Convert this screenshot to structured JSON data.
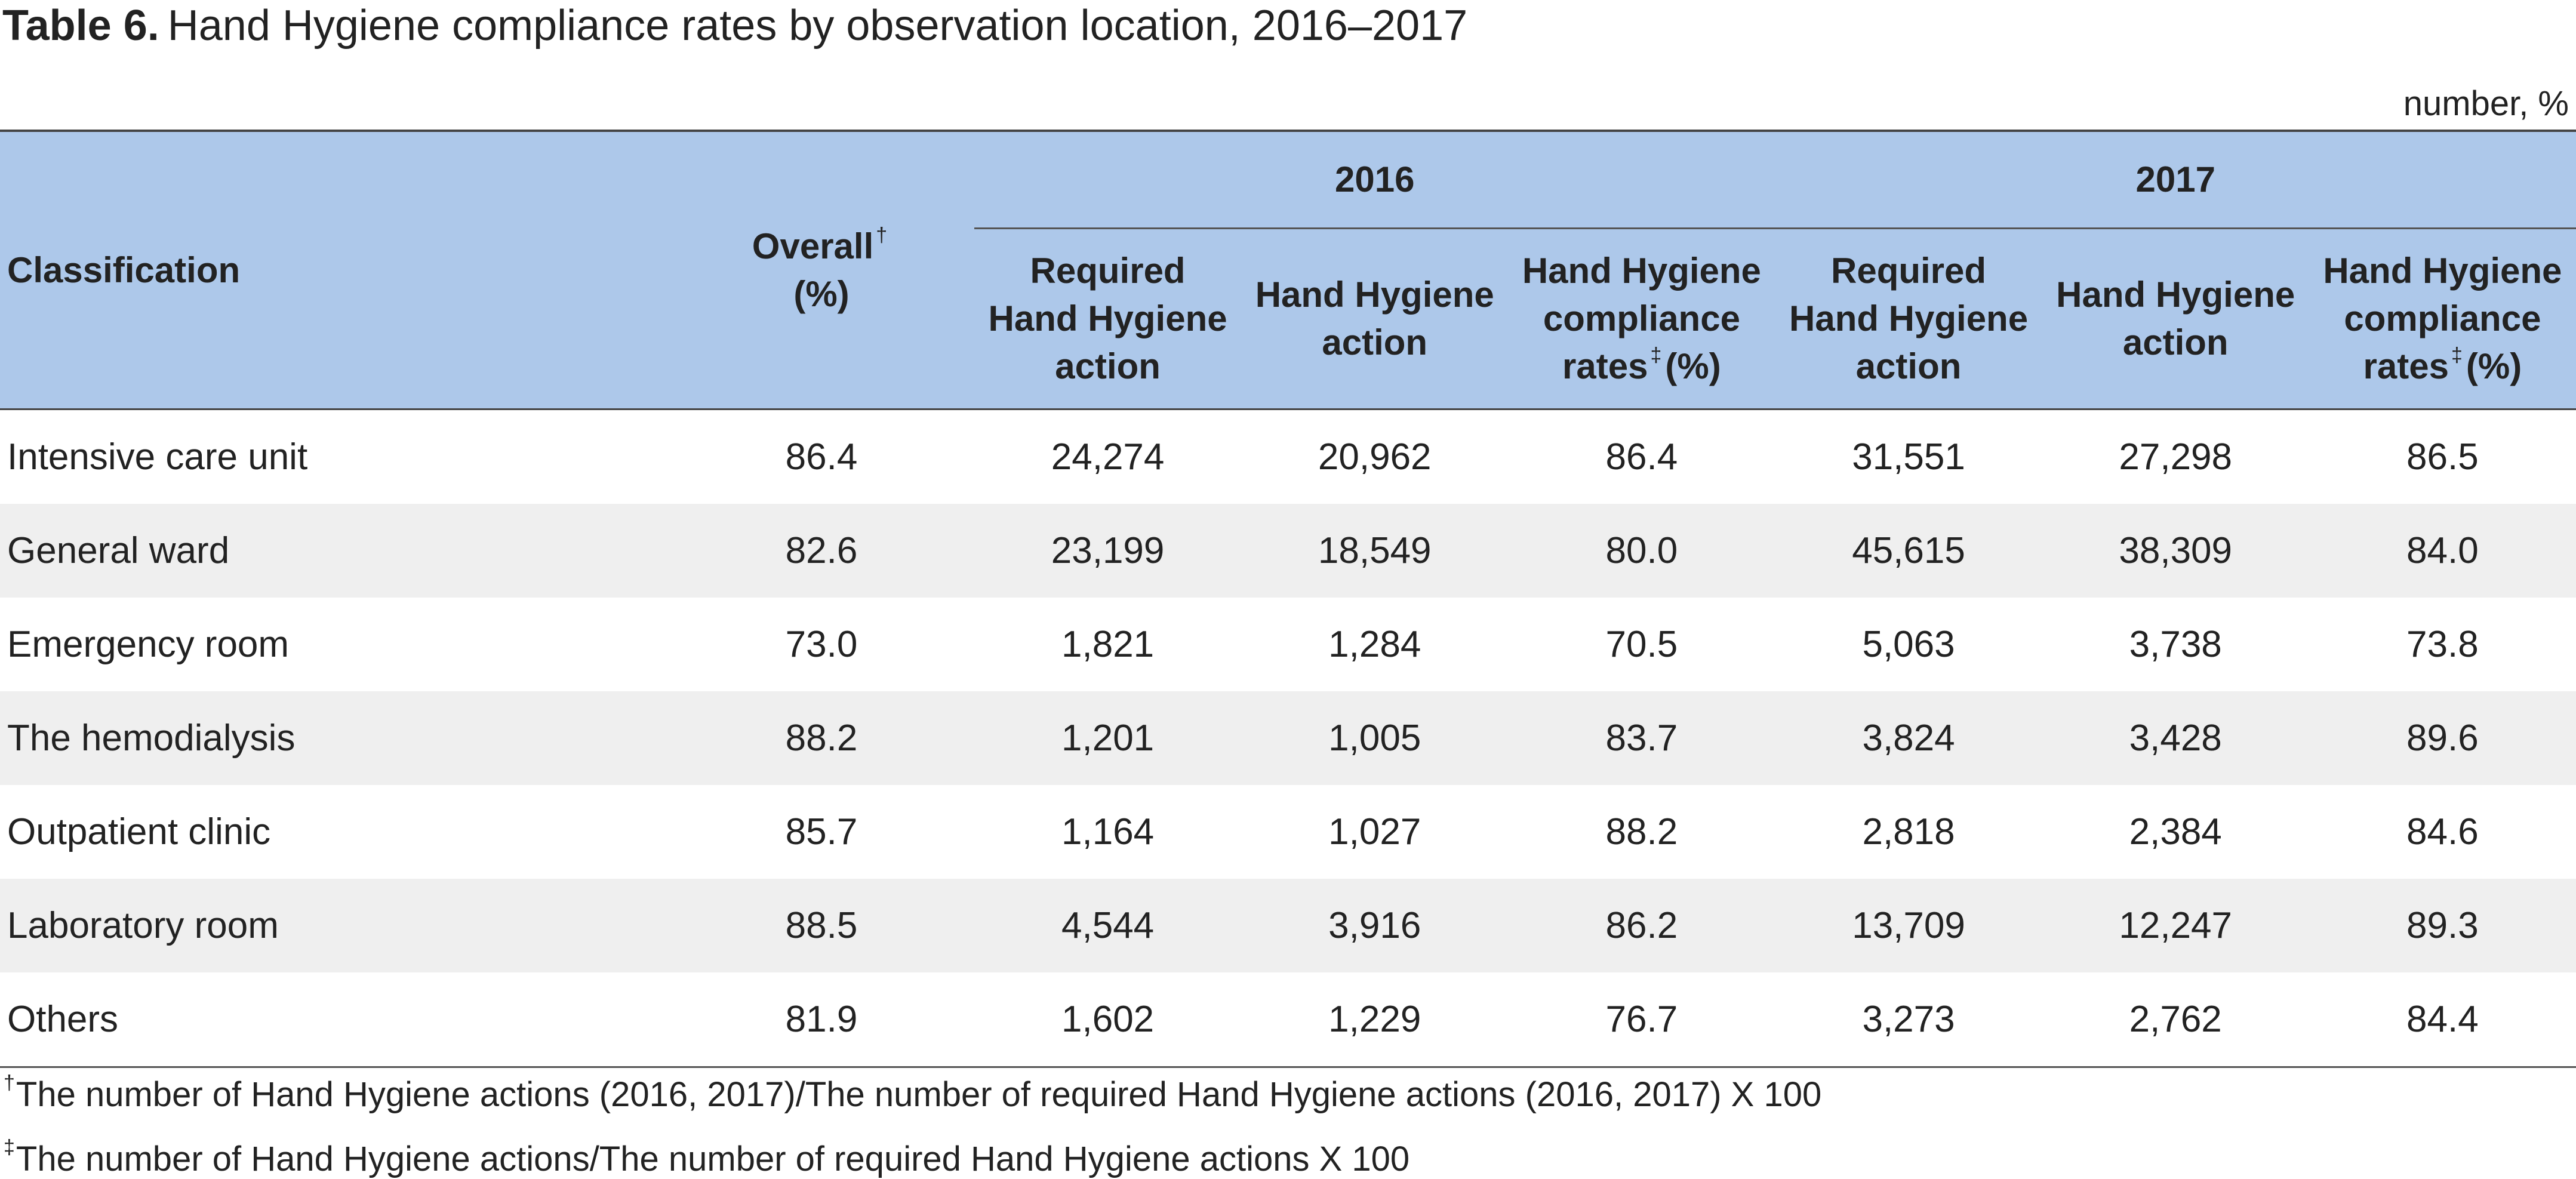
{
  "title": {
    "label": "Table 6.",
    "text": "Hand Hygiene compliance rates by observation location, 2016–2017"
  },
  "unit": "number, %",
  "table": {
    "header": {
      "classification": "Classification",
      "overall": [
        [
          {
            "text": "Overall"
          },
          {
            "sup": "†"
          }
        ],
        [
          {
            "text": "(%)"
          }
        ]
      ],
      "years": [
        {
          "label": "2016",
          "columns": [
            [
              [
                {
                  "text": "Required"
                }
              ],
              [
                {
                  "text": "Hand Hygiene"
                }
              ],
              [
                {
                  "text": "action"
                }
              ]
            ],
            [
              [
                {
                  "text": "Hand Hygiene"
                }
              ],
              [
                {
                  "text": "action"
                }
              ]
            ],
            [
              [
                {
                  "text": "Hand Hygiene"
                }
              ],
              [
                {
                  "text": "compliance"
                }
              ],
              [
                {
                  "text": "rates"
                },
                {
                  "sup": "‡"
                },
                {
                  "text": "(%)"
                }
              ]
            ]
          ]
        },
        {
          "label": "2017",
          "columns": [
            [
              [
                {
                  "text": "Required"
                }
              ],
              [
                {
                  "text": "Hand Hygiene"
                }
              ],
              [
                {
                  "text": "action"
                }
              ]
            ],
            [
              [
                {
                  "text": "Hand Hygiene"
                }
              ],
              [
                {
                  "text": "action"
                }
              ]
            ],
            [
              [
                {
                  "text": "Hand Hygiene"
                }
              ],
              [
                {
                  "text": "compliance"
                }
              ],
              [
                {
                  "text": "rates"
                },
                {
                  "sup": "‡"
                },
                {
                  "text": "(%)"
                }
              ]
            ]
          ]
        }
      ]
    },
    "rows": [
      [
        "Intensive care unit",
        "86.4",
        "24,274",
        "20,962",
        "86.4",
        "31,551",
        "27,298",
        "86.5"
      ],
      [
        "General ward",
        "82.6",
        "23,199",
        "18,549",
        "80.0",
        "45,615",
        "38,309",
        "84.0"
      ],
      [
        "Emergency room",
        "73.0",
        "1,821",
        "1,284",
        "70.5",
        "5,063",
        "3,738",
        "73.8"
      ],
      [
        "The hemodialysis",
        "88.2",
        "1,201",
        "1,005",
        "83.7",
        "3,824",
        "3,428",
        "89.6"
      ],
      [
        "Outpatient clinic",
        "85.7",
        "1,164",
        "1,027",
        "88.2",
        "2,818",
        "2,384",
        "84.6"
      ],
      [
        "Laboratory room",
        "88.5",
        "4,544",
        "3,916",
        "86.2",
        "13,709",
        "12,247",
        "89.3"
      ],
      [
        "Others",
        "81.9",
        "1,602",
        "1,229",
        "76.7",
        "3,273",
        "2,762",
        "84.4"
      ]
    ]
  },
  "footnotes": [
    {
      "mark": "†",
      "text": "The number of Hand Hygiene actions (2016, 2017)/The number of required Hand Hygiene actions (2016, 2017) X 100"
    },
    {
      "mark": "‡",
      "text": "The number of Hand Hygiene actions/The number of required Hand Hygiene actions X 100"
    }
  ]
}
